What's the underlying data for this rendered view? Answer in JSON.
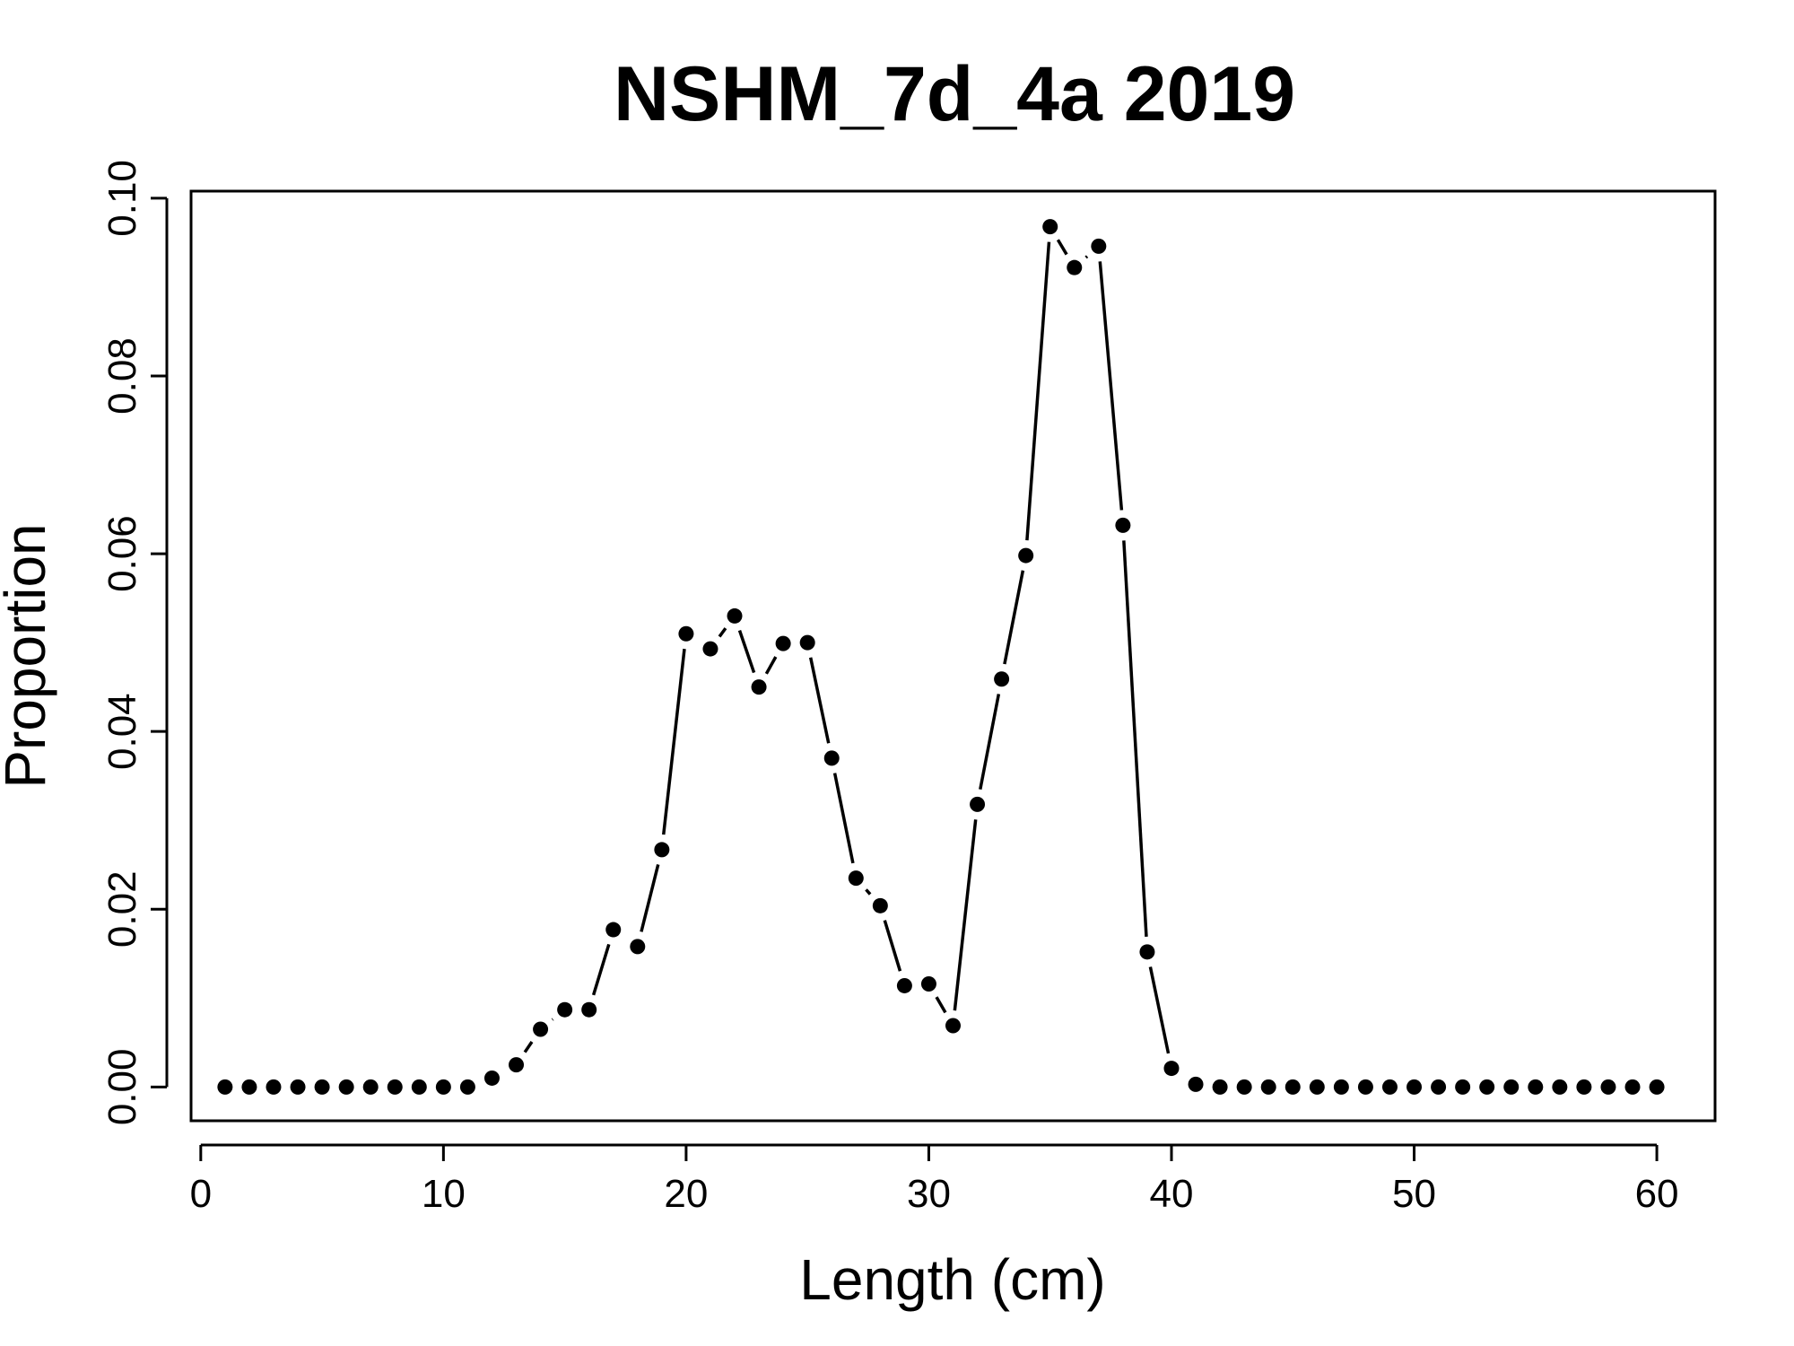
{
  "chart_data": {
    "type": "line",
    "title": "NSHM_7d_4a 2019",
    "xlabel": "Length (cm)",
    "ylabel": "Proportion",
    "xlim": [
      -0.4,
      62.4
    ],
    "ylim": [
      -0.0038,
      0.1008
    ],
    "xticks": [
      0,
      10,
      20,
      30,
      40,
      50,
      60
    ],
    "xtick_labels": [
      "0",
      "10",
      "20",
      "30",
      "40",
      "50",
      "60"
    ],
    "yticks": [
      0.0,
      0.02,
      0.04,
      0.06,
      0.08,
      0.1
    ],
    "ytick_labels": [
      "0.00",
      "0.02",
      "0.04",
      "0.06",
      "0.08",
      "0.10"
    ],
    "grid": false,
    "legend": "none",
    "series": [
      {
        "line_style": "overplotted points and line",
        "color": "#000000",
        "x": [
          1,
          2,
          3,
          4,
          5,
          6,
          7,
          8,
          9,
          10,
          11,
          12,
          13,
          14,
          15,
          16,
          17,
          18,
          19,
          20,
          21,
          22,
          23,
          24,
          25,
          26,
          27,
          28,
          29,
          30,
          31,
          32,
          33,
          34,
          35,
          36,
          37,
          38,
          39,
          40,
          41,
          42,
          43,
          44,
          45,
          46,
          47,
          48,
          49,
          50,
          51,
          52,
          53,
          54,
          55,
          56,
          57,
          58,
          59,
          60
        ],
        "y": [
          0,
          0,
          0,
          0,
          0,
          0,
          0,
          0,
          0,
          0,
          0,
          0.001,
          0.0025,
          0.0065,
          0.0087,
          0.0087,
          0.0177,
          0.0158,
          0.0267,
          0.051,
          0.0493,
          0.053,
          0.045,
          0.0499,
          0.05,
          0.037,
          0.0235,
          0.0204,
          0.0114,
          0.0116,
          0.0069,
          0.0318,
          0.0459,
          0.0598,
          0.0968,
          0.0922,
          0.0946,
          0.0632,
          0.0152,
          0.0021,
          0.0003,
          0,
          0,
          0,
          0,
          0,
          0,
          0,
          0,
          0,
          0,
          0,
          0,
          0,
          0,
          0,
          0,
          0,
          0,
          0
        ]
      }
    ]
  }
}
